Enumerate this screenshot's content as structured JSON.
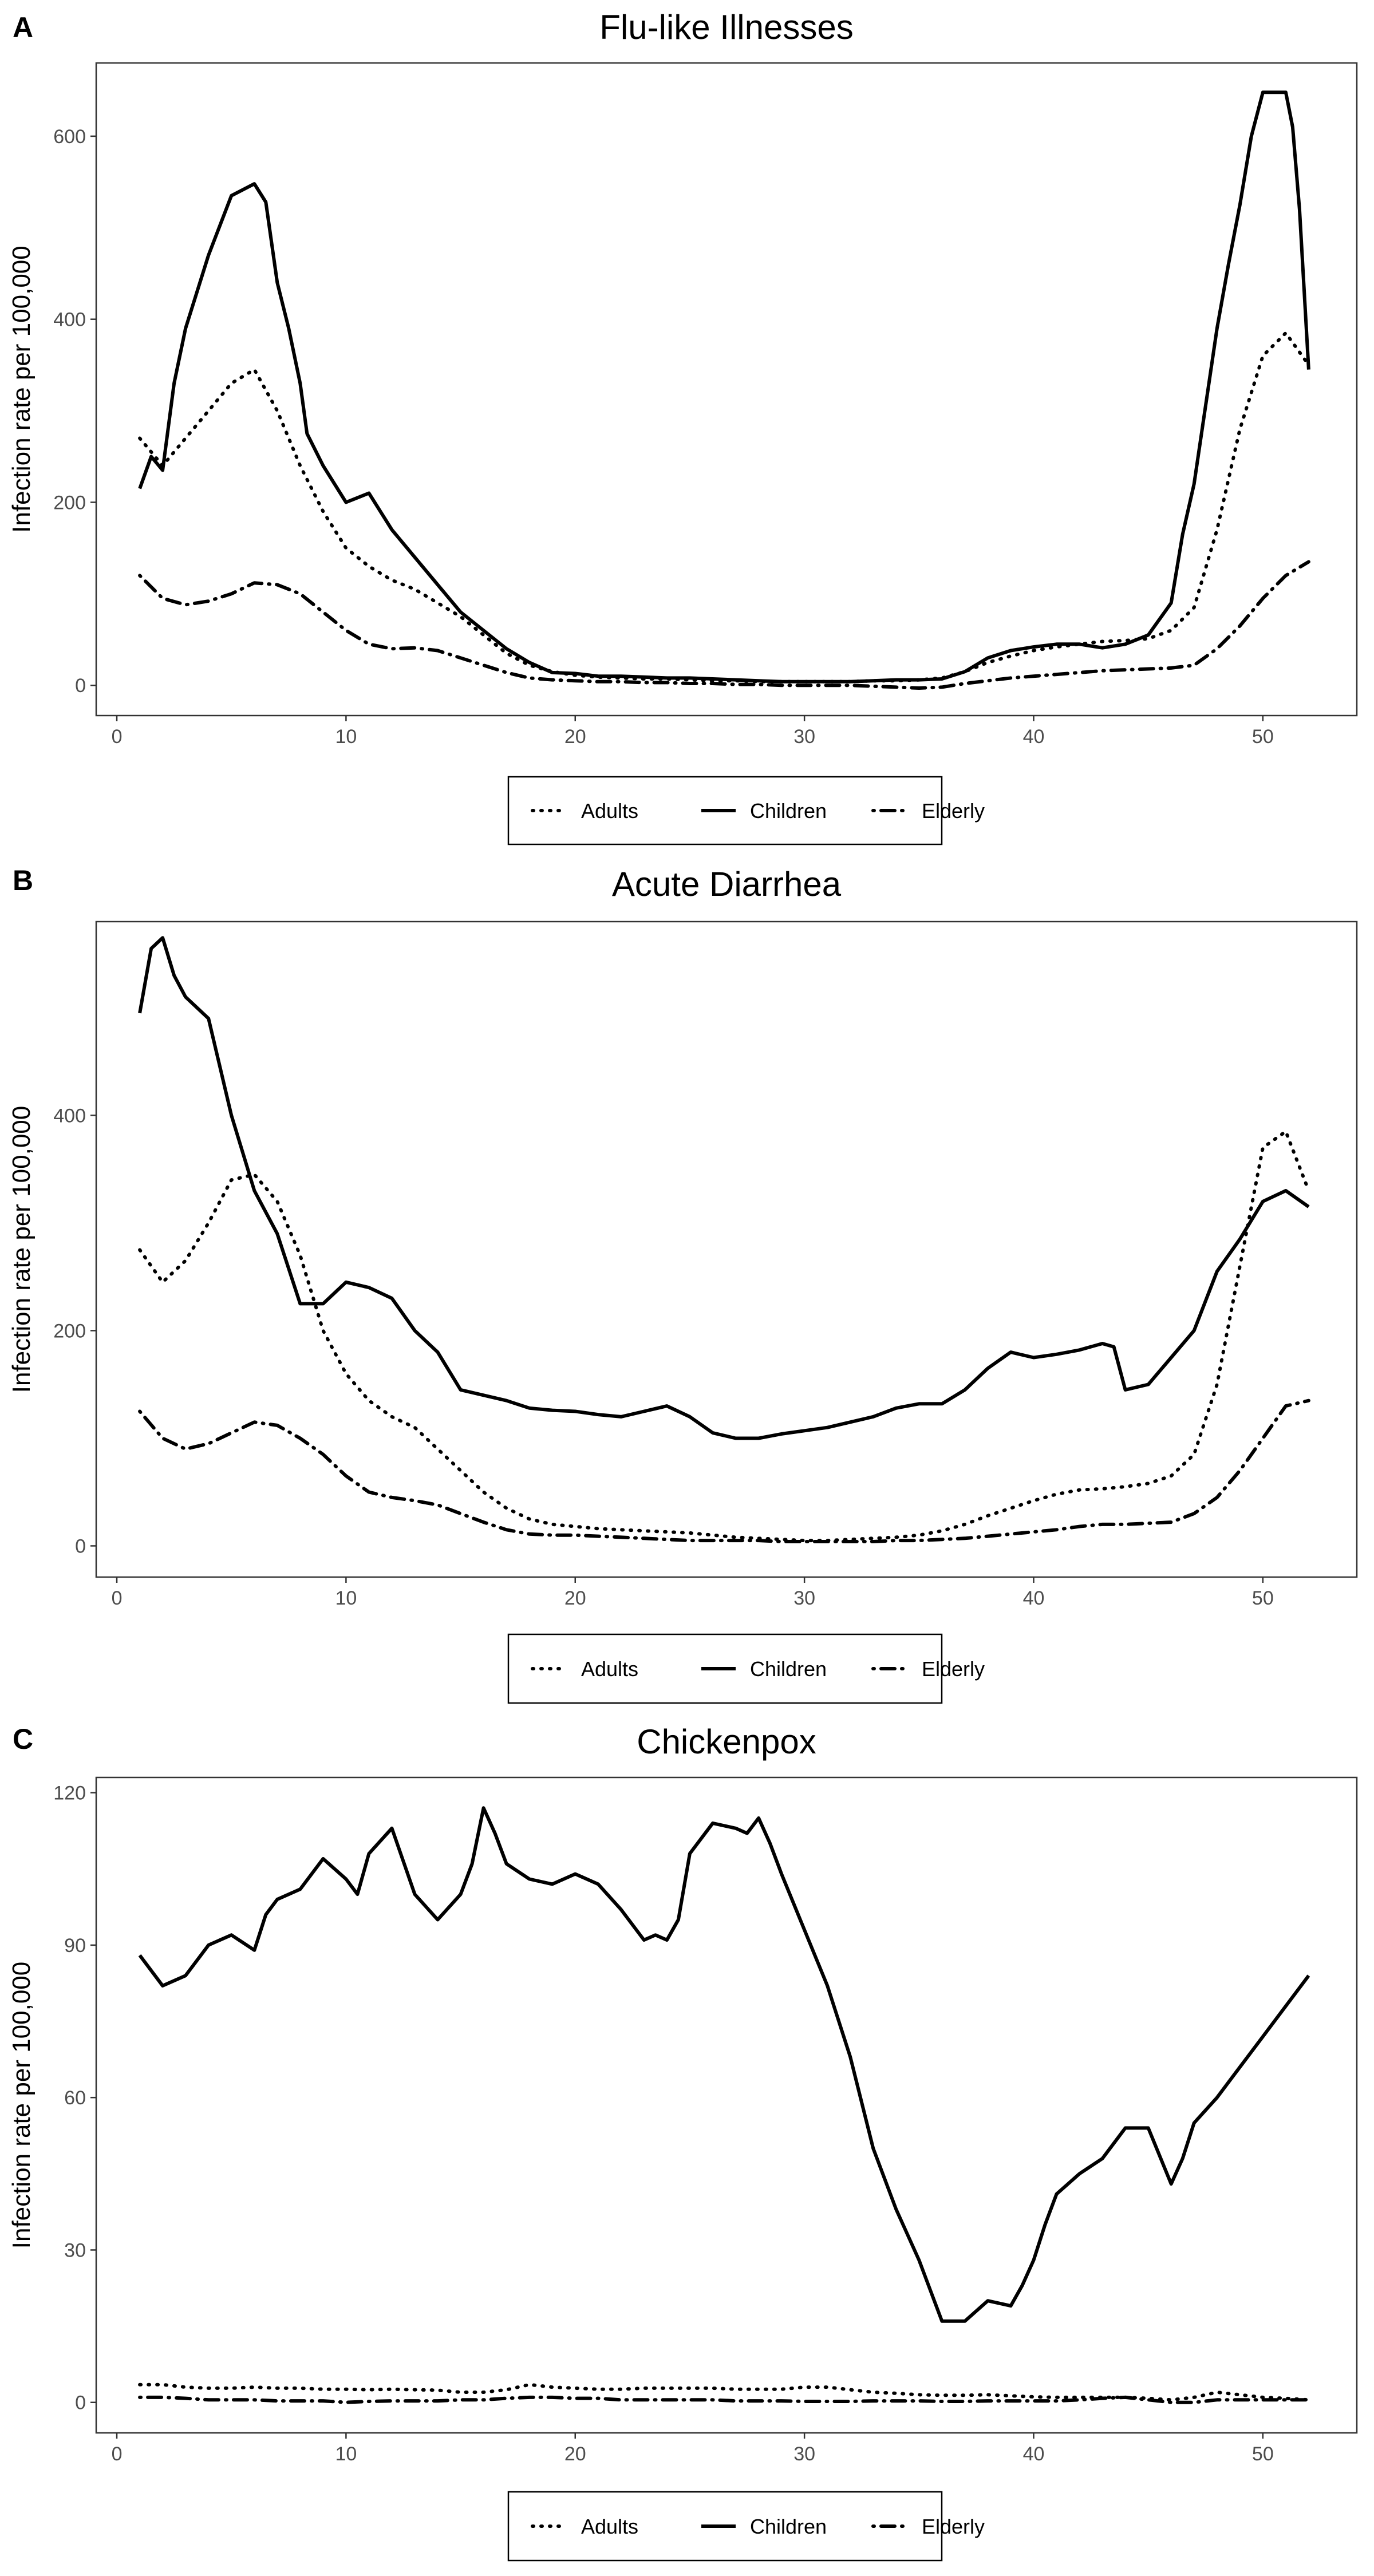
{
  "chart_data": [
    {
      "panel": "A",
      "type": "line",
      "title": "Flu-like Illnesses",
      "xlabel": "",
      "ylabel": "Infection rate per 100,000",
      "xlim": [
        -0.9,
        54.1
      ],
      "ylim": [
        -33,
        680
      ],
      "xticks": [
        0,
        10,
        20,
        30,
        40,
        50
      ],
      "yticks": [
        0,
        200,
        400,
        600
      ],
      "grid": false,
      "legend_position": "bottom",
      "series": [
        {
          "name": "Adults",
          "style": "dotted",
          "x": [
            1,
            2,
            3,
            4,
            5,
            6,
            7,
            8,
            9,
            10,
            11,
            12,
            13,
            14,
            15,
            16,
            17,
            18,
            19,
            20,
            21,
            22,
            23,
            24,
            25,
            26,
            27,
            28,
            29,
            30,
            31,
            32,
            33,
            34,
            35,
            36,
            37,
            38,
            39,
            40,
            41,
            42,
            43,
            44,
            45,
            46,
            47,
            48,
            49,
            50,
            51,
            52
          ],
          "y": [
            270,
            240,
            270,
            300,
            330,
            345,
            300,
            240,
            190,
            150,
            130,
            115,
            105,
            90,
            75,
            55,
            35,
            22,
            15,
            11,
            9,
            8,
            7,
            7,
            6,
            5,
            5,
            4,
            4,
            4,
            4,
            4,
            5,
            5,
            6,
            8,
            15,
            25,
            32,
            38,
            42,
            45,
            48,
            49,
            51,
            60,
            85,
            170,
            280,
            360,
            385,
            350
          ]
        },
        {
          "name": "Children",
          "style": "solid",
          "x": [
            1,
            1.5,
            2,
            2.5,
            3,
            4,
            5,
            6,
            6.5,
            7,
            7.5,
            8,
            8.3,
            9,
            10,
            11,
            12,
            13,
            14,
            15,
            16,
            17,
            18,
            19,
            20,
            21,
            22,
            23,
            24,
            25,
            26,
            27,
            28,
            29,
            30,
            31,
            32,
            33,
            34,
            35,
            36,
            37,
            38,
            39,
            40,
            41,
            42,
            43,
            44,
            45,
            46,
            46.5,
            47,
            48,
            48.5,
            49,
            49.5,
            50,
            50.5,
            51,
            51.3,
            51.6,
            52
          ],
          "y": [
            215,
            250,
            235,
            330,
            390,
            470,
            535,
            548,
            528,
            440,
            390,
            330,
            275,
            240,
            200,
            210,
            170,
            140,
            110,
            80,
            60,
            40,
            25,
            14,
            13,
            10,
            10,
            9,
            8,
            8,
            7,
            6,
            5,
            4,
            4,
            4,
            4,
            5,
            6,
            6,
            7,
            15,
            30,
            38,
            42,
            45,
            45,
            41,
            45,
            55,
            90,
            165,
            220,
            390,
            460,
            525,
            600,
            648,
            648,
            648,
            610,
            520,
            345
          ]
        },
        {
          "name": "Elderly",
          "style": "dotdash",
          "x": [
            1,
            2,
            3,
            4,
            5,
            6,
            7,
            8,
            9,
            10,
            11,
            12,
            13,
            14,
            15,
            16,
            17,
            18,
            19,
            20,
            21,
            22,
            23,
            24,
            25,
            26,
            27,
            28,
            29,
            30,
            31,
            32,
            33,
            34,
            35,
            36,
            37,
            38,
            39,
            40,
            41,
            42,
            43,
            44,
            45,
            46,
            47,
            48,
            49,
            50,
            51,
            52
          ],
          "y": [
            120,
            95,
            88,
            92,
            100,
            112,
            110,
            100,
            80,
            60,
            45,
            40,
            41,
            38,
            30,
            22,
            14,
            8,
            6,
            5,
            4,
            4,
            3,
            3,
            2,
            2,
            1,
            1,
            0,
            0,
            0,
            0,
            -1,
            -2,
            -3,
            -2,
            2,
            5,
            8,
            10,
            12,
            14,
            16,
            17,
            18,
            19,
            22,
            40,
            65,
            95,
            120,
            135
          ]
        }
      ]
    },
    {
      "panel": "B",
      "type": "line",
      "title": "Acute Diarrhea",
      "xlabel": "",
      "ylabel": "Infection rate per 100,000",
      "xlim": [
        -0.9,
        54.1
      ],
      "ylim": [
        -29,
        580
      ],
      "xticks": [
        0,
        10,
        20,
        30,
        40,
        50
      ],
      "yticks": [
        0,
        200,
        400
      ],
      "grid": false,
      "legend_position": "bottom",
      "series": [
        {
          "name": "Adults",
          "style": "dotted",
          "x": [
            1,
            2,
            3,
            4,
            5,
            6,
            7,
            8,
            9,
            10,
            11,
            12,
            13,
            14,
            15,
            16,
            17,
            18,
            19,
            20,
            21,
            22,
            23,
            24,
            25,
            26,
            27,
            28,
            29,
            30,
            31,
            32,
            33,
            34,
            35,
            36,
            37,
            38,
            39,
            40,
            41,
            42,
            43,
            44,
            45,
            46,
            47,
            48,
            49,
            50,
            51,
            52
          ],
          "y": [
            275,
            245,
            265,
            300,
            340,
            345,
            320,
            270,
            200,
            160,
            135,
            120,
            110,
            90,
            70,
            50,
            35,
            25,
            20,
            18,
            16,
            15,
            14,
            13,
            12,
            10,
            8,
            7,
            6,
            5,
            5,
            6,
            7,
            8,
            10,
            14,
            20,
            28,
            35,
            42,
            48,
            52,
            53,
            55,
            58,
            65,
            85,
            150,
            260,
            370,
            385,
            330
          ]
        },
        {
          "name": "Children",
          "style": "solid",
          "x": [
            1,
            1.5,
            2,
            2.5,
            3,
            4,
            5,
            6,
            7,
            8,
            9,
            10,
            11,
            12,
            13,
            14,
            15,
            16,
            17,
            18,
            19,
            20,
            21,
            22,
            23,
            24,
            25,
            26,
            27,
            28,
            29,
            30,
            31,
            32,
            33,
            34,
            35,
            36,
            37,
            38,
            39,
            40,
            41,
            42,
            43,
            43.5,
            44,
            45,
            46,
            47,
            48,
            49,
            50,
            51,
            52
          ],
          "y": [
            495,
            555,
            565,
            530,
            510,
            490,
            400,
            330,
            290,
            225,
            225,
            245,
            240,
            230,
            200,
            180,
            145,
            140,
            135,
            128,
            126,
            125,
            122,
            120,
            125,
            130,
            120,
            105,
            100,
            100,
            104,
            107,
            110,
            115,
            120,
            128,
            132,
            132,
            145,
            165,
            180,
            175,
            178,
            182,
            188,
            185,
            145,
            150,
            175,
            200,
            255,
            285,
            320,
            330,
            315
          ]
        },
        {
          "name": "Elderly",
          "style": "dotdash",
          "x": [
            1,
            2,
            3,
            4,
            5,
            6,
            7,
            8,
            9,
            10,
            11,
            12,
            13,
            14,
            15,
            16,
            17,
            18,
            19,
            20,
            21,
            22,
            23,
            24,
            25,
            26,
            27,
            28,
            29,
            30,
            31,
            32,
            33,
            34,
            35,
            36,
            37,
            38,
            39,
            40,
            41,
            42,
            43,
            44,
            45,
            46,
            47,
            48,
            49,
            50,
            51,
            52
          ],
          "y": [
            125,
            100,
            90,
            95,
            105,
            115,
            112,
            100,
            85,
            65,
            50,
            45,
            42,
            38,
            30,
            22,
            15,
            11,
            10,
            10,
            9,
            8,
            7,
            6,
            5,
            5,
            5,
            5,
            4,
            4,
            4,
            4,
            4,
            5,
            5,
            6,
            7,
            9,
            11,
            13,
            15,
            18,
            20,
            20,
            21,
            22,
            30,
            45,
            70,
            100,
            130,
            135
          ]
        }
      ]
    },
    {
      "panel": "C",
      "type": "line",
      "title": "Chickenpox",
      "xlabel": "",
      "ylabel": "Infection rate per 100,000",
      "xlim": [
        -0.9,
        54.1
      ],
      "ylim": [
        -6,
        123
      ],
      "xticks": [
        0,
        10,
        20,
        30,
        40,
        50
      ],
      "yticks": [
        0,
        30,
        60,
        90,
        120
      ],
      "grid": false,
      "legend_position": "bottom",
      "series": [
        {
          "name": "Adults",
          "style": "dotted",
          "x": [
            1,
            2,
            3,
            4,
            5,
            6,
            7,
            8,
            9,
            10,
            11,
            12,
            13,
            14,
            15,
            16,
            17,
            18,
            19,
            20,
            21,
            22,
            23,
            24,
            25,
            26,
            27,
            28,
            29,
            30,
            31,
            32,
            33,
            34,
            35,
            36,
            37,
            38,
            39,
            40,
            41,
            42,
            43,
            44,
            45,
            46,
            47,
            48,
            49,
            50,
            51,
            52
          ],
          "y": [
            3.5,
            3.5,
            3,
            2.8,
            2.8,
            3,
            2.8,
            2.8,
            2.6,
            2.6,
            2.5,
            2.6,
            2.5,
            2.4,
            2,
            2,
            2.5,
            3.5,
            3,
            2.8,
            2.6,
            2.6,
            2.8,
            2.8,
            2.8,
            2.8,
            2.6,
            2.6,
            2.6,
            3,
            3,
            2.5,
            2,
            1.8,
            1.5,
            1.4,
            1.4,
            1.5,
            1.3,
            1.1,
            1,
            1,
            1,
            1,
            0.8,
            0.5,
            1,
            2,
            1.5,
            1,
            0.8,
            0.5
          ]
        },
        {
          "name": "Children",
          "style": "solid",
          "x": [
            1,
            2,
            3,
            4,
            5,
            6,
            6.5,
            7,
            8,
            9,
            10,
            10.5,
            11,
            12,
            13,
            14,
            15,
            15.5,
            16,
            16.5,
            17,
            18,
            19,
            20,
            21,
            22,
            23,
            23.5,
            24,
            24.5,
            25,
            26,
            27,
            27.5,
            28,
            28.5,
            29,
            30,
            31,
            32,
            33,
            34,
            34.5,
            35,
            35.5,
            36,
            37,
            38,
            39,
            39.5,
            40,
            40.5,
            41,
            42,
            43,
            44,
            45,
            46,
            46.5,
            47,
            48,
            49,
            50,
            51,
            52
          ],
          "y": [
            88,
            82,
            84,
            90,
            92,
            89,
            96,
            99,
            101,
            107,
            103,
            100,
            108,
            113,
            100,
            95,
            100,
            106,
            117,
            112,
            106,
            103,
            102,
            104,
            102,
            97,
            91,
            92,
            91,
            95,
            108,
            114,
            113,
            112,
            115,
            110,
            104,
            93,
            82,
            68,
            50,
            38,
            33,
            28,
            22,
            16,
            16,
            20,
            19,
            23,
            28,
            35,
            41,
            45,
            48,
            54,
            54,
            43,
            48,
            55,
            60,
            66,
            72,
            78,
            84
          ]
        },
        {
          "name": "Elderly",
          "style": "dotdash",
          "x": [
            1,
            2,
            3,
            4,
            5,
            6,
            7,
            8,
            9,
            10,
            11,
            12,
            13,
            14,
            15,
            16,
            17,
            18,
            19,
            20,
            21,
            22,
            23,
            24,
            25,
            26,
            27,
            28,
            29,
            30,
            31,
            32,
            33,
            34,
            35,
            36,
            37,
            38,
            39,
            40,
            41,
            42,
            43,
            44,
            45,
            46,
            47,
            48,
            49,
            50,
            51,
            52
          ],
          "y": [
            1,
            1,
            0.8,
            0.5,
            0.5,
            0.5,
            0.3,
            0.3,
            0.3,
            0,
            0.2,
            0.3,
            0.3,
            0.3,
            0.5,
            0.5,
            0.8,
            1,
            1,
            0.8,
            0.8,
            0.5,
            0.5,
            0.5,
            0.5,
            0.5,
            0.3,
            0.3,
            0.3,
            0.2,
            0.2,
            0.2,
            0.3,
            0.3,
            0.3,
            0.2,
            0.2,
            0.3,
            0.3,
            0.3,
            0.3,
            0.5,
            0.8,
            1,
            0.5,
            0,
            0,
            0.5,
            0.5,
            0.5,
            0.5,
            0.5
          ]
        }
      ]
    }
  ],
  "legend": {
    "items": [
      "Adults",
      "Children",
      "Elderly"
    ]
  }
}
